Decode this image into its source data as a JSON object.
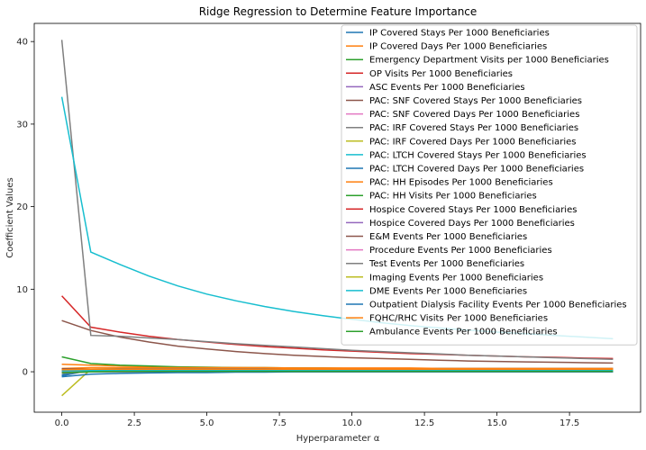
{
  "chart_data": {
    "type": "line",
    "title": "Ridge Regression to Determine Feature Importance",
    "xlabel": "Hyperparameter α",
    "ylabel": "Coefficient Values",
    "xlim": [
      -0.95,
      19.95
    ],
    "ylim": [
      -4.9,
      42.2
    ],
    "xticks": [
      0,
      2.5,
      5,
      7.5,
      10,
      12.5,
      15,
      17.5
    ],
    "xtick_labels": [
      "0.0",
      "2.5",
      "5.0",
      "7.5",
      "10.0",
      "12.5",
      "15.0",
      "17.5"
    ],
    "yticks": [
      0,
      10,
      20,
      30,
      40
    ],
    "ytick_labels": [
      "0",
      "10",
      "20",
      "30",
      "40"
    ],
    "grid": false,
    "legend_position": "top-right",
    "x": [
      0,
      1,
      2,
      3,
      4,
      5,
      6,
      7,
      8,
      9,
      10,
      11,
      12,
      13,
      14,
      15,
      16,
      17,
      18,
      19
    ],
    "series": [
      {
        "name": "IP Covered Stays Per 1000 Beneficiaries",
        "color": "#1f77b4",
        "values": [
          -0.5,
          0.2,
          0.25,
          0.25,
          0.25,
          0.25,
          0.25,
          0.25,
          0.25,
          0.25,
          0.25,
          0.25,
          0.25,
          0.25,
          0.25,
          0.25,
          0.25,
          0.25,
          0.25,
          0.25
        ]
      },
      {
        "name": "IP Covered Days Per 1000 Beneficiaries",
        "color": "#ff7f0e",
        "values": [
          0.9,
          0.8,
          0.7,
          0.6,
          0.55,
          0.5,
          0.5,
          0.45,
          0.45,
          0.4,
          0.4,
          0.4,
          0.35,
          0.35,
          0.35,
          0.3,
          0.3,
          0.3,
          0.3,
          0.3
        ]
      },
      {
        "name": "Emergency Department Visits per 1000 Beneficiaries",
        "color": "#2ca02c",
        "values": [
          1.8,
          1.0,
          0.8,
          0.7,
          0.6,
          0.55,
          0.5,
          0.5,
          0.45,
          0.45,
          0.4,
          0.4,
          0.4,
          0.4,
          0.35,
          0.35,
          0.35,
          0.35,
          0.35,
          0.35
        ]
      },
      {
        "name": "OP Visits Per 1000 Beneficiaries",
        "color": "#d62728",
        "values": [
          9.2,
          5.4,
          4.8,
          4.3,
          3.9,
          3.6,
          3.3,
          3.05,
          2.85,
          2.65,
          2.5,
          2.35,
          2.2,
          2.1,
          2.0,
          1.9,
          1.8,
          1.75,
          1.65,
          1.6
        ]
      },
      {
        "name": "ASC Events Per 1000 Beneficiaries",
        "color": "#9467bd",
        "values": [
          0.3,
          0.3,
          0.3,
          0.3,
          0.3,
          0.3,
          0.3,
          0.3,
          0.3,
          0.3,
          0.3,
          0.3,
          0.3,
          0.3,
          0.3,
          0.3,
          0.3,
          0.3,
          0.3,
          0.3
        ]
      },
      {
        "name": "PAC: SNF Covered Stays Per 1000 Beneficiaries",
        "color": "#8c564b",
        "values": [
          6.2,
          5.0,
          4.2,
          3.6,
          3.1,
          2.75,
          2.45,
          2.2,
          2.0,
          1.85,
          1.7,
          1.6,
          1.5,
          1.4,
          1.3,
          1.25,
          1.2,
          1.15,
          1.1,
          1.05
        ]
      },
      {
        "name": "PAC: SNF Covered Days Per 1000 Beneficiaries",
        "color": "#e377c2",
        "values": [
          0.2,
          0.2,
          0.2,
          0.2,
          0.2,
          0.2,
          0.2,
          0.2,
          0.2,
          0.2,
          0.2,
          0.2,
          0.2,
          0.2,
          0.2,
          0.2,
          0.2,
          0.2,
          0.2,
          0.2
        ]
      },
      {
        "name": "PAC: IRF Covered Stays Per 1000 Beneficiaries",
        "color": "#7f7f7f",
        "values": [
          40.2,
          4.4,
          4.3,
          4.1,
          3.9,
          3.65,
          3.4,
          3.2,
          3.0,
          2.8,
          2.6,
          2.45,
          2.3,
          2.15,
          2.0,
          1.9,
          1.8,
          1.7,
          1.6,
          1.5
        ]
      },
      {
        "name": "PAC: IRF Covered Days Per 1000 Beneficiaries",
        "color": "#bcbd22",
        "values": [
          -2.9,
          0.3,
          0.35,
          0.35,
          0.35,
          0.35,
          0.35,
          0.35,
          0.35,
          0.35,
          0.35,
          0.35,
          0.35,
          0.35,
          0.35,
          0.35,
          0.35,
          0.35,
          0.35,
          0.35
        ]
      },
      {
        "name": "PAC: LTCH Covered Stays Per 1000 Beneficiaries",
        "color": "#17becf",
        "values": [
          33.3,
          14.5,
          13.0,
          11.6,
          10.4,
          9.4,
          8.6,
          7.9,
          7.3,
          6.8,
          6.35,
          5.95,
          5.6,
          5.3,
          5.05,
          4.8,
          4.6,
          4.4,
          4.2,
          4.0
        ]
      },
      {
        "name": "PAC: LTCH Covered Days Per 1000 Beneficiaries",
        "color": "#1f77b4",
        "values": [
          -0.4,
          0.3,
          0.35,
          0.4,
          0.4,
          0.4,
          0.4,
          0.4,
          0.4,
          0.4,
          0.4,
          0.4,
          0.4,
          0.4,
          0.4,
          0.4,
          0.4,
          0.4,
          0.4,
          0.4
        ]
      },
      {
        "name": "PAC: HH Episodes Per 1000 Beneficiaries",
        "color": "#ff7f0e",
        "values": [
          0.4,
          0.5,
          0.5,
          0.5,
          0.5,
          0.5,
          0.5,
          0.5,
          0.45,
          0.45,
          0.45,
          0.45,
          0.45,
          0.4,
          0.4,
          0.4,
          0.4,
          0.4,
          0.4,
          0.4
        ]
      },
      {
        "name": "PAC: HH Visits Per 1000 Beneficiaries",
        "color": "#2ca02c",
        "values": [
          0.1,
          0.15,
          0.15,
          0.15,
          0.15,
          0.15,
          0.15,
          0.15,
          0.15,
          0.15,
          0.15,
          0.15,
          0.15,
          0.15,
          0.15,
          0.15,
          0.15,
          0.15,
          0.15,
          0.15
        ]
      },
      {
        "name": "Hospice Covered Stays Per 1000 Beneficiaries",
        "color": "#d62728",
        "values": [
          0.0,
          0.1,
          0.15,
          0.15,
          0.15,
          0.15,
          0.15,
          0.15,
          0.15,
          0.15,
          0.15,
          0.15,
          0.15,
          0.15,
          0.15,
          0.15,
          0.15,
          0.15,
          0.15,
          0.15
        ]
      },
      {
        "name": "Hospice Covered Days Per 1000 Beneficiaries",
        "color": "#9467bd",
        "values": [
          0.05,
          0.05,
          0.05,
          0.05,
          0.05,
          0.05,
          0.05,
          0.05,
          0.05,
          0.05,
          0.05,
          0.05,
          0.05,
          0.05,
          0.05,
          0.05,
          0.05,
          0.05,
          0.05,
          0.05
        ]
      },
      {
        "name": "E&M Events Per 1000 Beneficiaries",
        "color": "#8c564b",
        "values": [
          0.35,
          0.3,
          0.3,
          0.3,
          0.3,
          0.3,
          0.3,
          0.3,
          0.3,
          0.3,
          0.3,
          0.3,
          0.3,
          0.3,
          0.3,
          0.3,
          0.3,
          0.3,
          0.3,
          0.3
        ]
      },
      {
        "name": "Procedure Events Per 1000 Beneficiaries",
        "color": "#e377c2",
        "values": [
          0.05,
          0.1,
          0.1,
          0.1,
          0.1,
          0.1,
          0.1,
          0.1,
          0.1,
          0.1,
          0.1,
          0.1,
          0.1,
          0.1,
          0.1,
          0.1,
          0.1,
          0.1,
          0.1,
          0.1
        ]
      },
      {
        "name": "Test Events Per 1000 Beneficiaries",
        "color": "#7f7f7f",
        "values": [
          -0.2,
          0.0,
          0.0,
          0.0,
          0.0,
          0.0,
          0.0,
          0.0,
          0.0,
          0.0,
          0.0,
          0.0,
          0.0,
          0.0,
          0.0,
          0.0,
          0.0,
          0.0,
          0.0,
          0.0
        ]
      },
      {
        "name": "Imaging Events Per 1000 Beneficiaries",
        "color": "#bcbd22",
        "values": [
          0.2,
          0.2,
          0.2,
          0.2,
          0.2,
          0.2,
          0.2,
          0.2,
          0.2,
          0.2,
          0.2,
          0.2,
          0.2,
          0.2,
          0.2,
          0.2,
          0.2,
          0.2,
          0.2,
          0.2
        ]
      },
      {
        "name": "DME Events Per 1000 Beneficiaries",
        "color": "#17becf",
        "values": [
          0.1,
          0.15,
          0.15,
          0.15,
          0.15,
          0.15,
          0.15,
          0.15,
          0.15,
          0.15,
          0.15,
          0.15,
          0.15,
          0.15,
          0.15,
          0.15,
          0.15,
          0.15,
          0.15,
          0.15
        ]
      },
      {
        "name": "Outpatient Dialysis Facility Events Per 1000 Beneficiaries",
        "color": "#1f77b4",
        "values": [
          -0.6,
          -0.3,
          -0.2,
          -0.15,
          -0.1,
          -0.1,
          -0.05,
          -0.05,
          0.0,
          0.0,
          0.0,
          0.0,
          0.0,
          0.0,
          0.0,
          0.0,
          0.0,
          0.0,
          0.0,
          0.0
        ]
      },
      {
        "name": "FQHC/RHC Visits Per 1000 Beneficiaries",
        "color": "#ff7f0e",
        "values": [
          0.25,
          0.3,
          0.3,
          0.3,
          0.3,
          0.3,
          0.3,
          0.3,
          0.3,
          0.3,
          0.3,
          0.3,
          0.3,
          0.3,
          0.3,
          0.3,
          0.3,
          0.3,
          0.3,
          0.3
        ]
      },
      {
        "name": "Ambulance Events Per 1000 Beneficiaries",
        "color": "#2ca02c",
        "values": [
          -0.1,
          0.0,
          0.05,
          0.05,
          0.05,
          0.05,
          0.05,
          0.05,
          0.05,
          0.05,
          0.05,
          0.05,
          0.05,
          0.05,
          0.05,
          0.05,
          0.05,
          0.05,
          0.05,
          0.05
        ]
      }
    ]
  }
}
